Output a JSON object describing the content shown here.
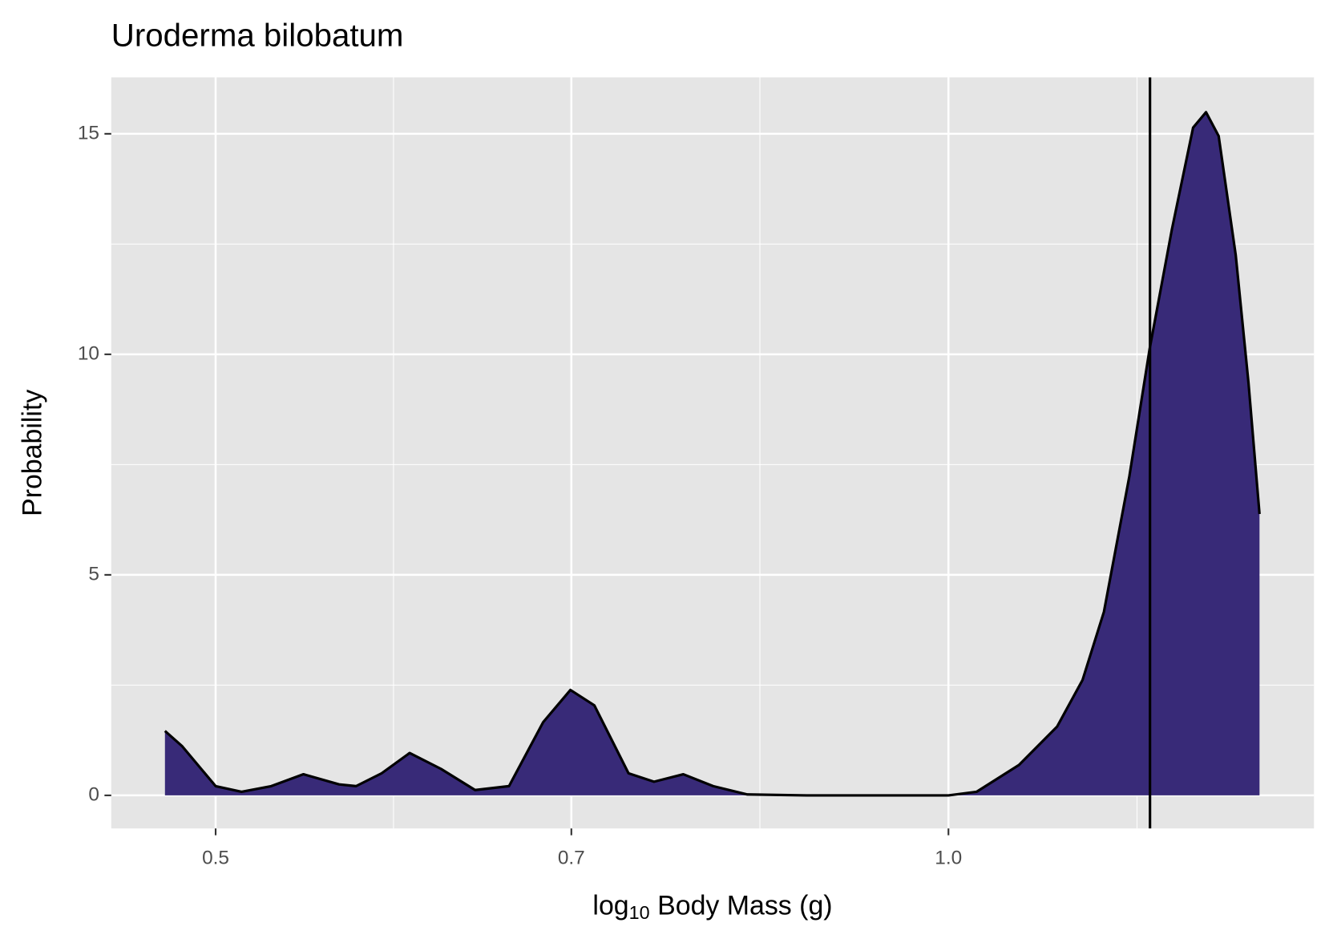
{
  "chart_data": {
    "type": "density",
    "title": "Uroderma bilobatum",
    "xlabel": {
      "base": "log",
      "subscript": "10",
      "rest": "Body Mass (g)"
    },
    "ylabel": "Probability",
    "x_log": true,
    "x": [
      0.4766,
      0.4843,
      0.5,
      0.5124,
      0.527,
      0.5433,
      0.5619,
      0.571,
      0.585,
      0.6007,
      0.6188,
      0.6391,
      0.6599,
      0.6816,
      0.6994,
      0.7154,
      0.7389,
      0.7569,
      0.7782,
      0.8005,
      0.8268,
      0.8743,
      1.0,
      1.0269,
      1.069,
      1.1082,
      1.1353,
      1.1584,
      1.1867,
      1.2097,
      1.2353,
      1.2604,
      1.2758,
      1.2912,
      1.3122,
      1.3281,
      1.3421
    ],
    "values": [
      1.46,
      1.12,
      0.21,
      0.08,
      0.21,
      0.48,
      0.25,
      0.21,
      0.5,
      0.96,
      0.6,
      0.12,
      0.21,
      1.66,
      2.39,
      2.04,
      0.5,
      0.31,
      0.48,
      0.21,
      0.02,
      0,
      0,
      0.08,
      0.69,
      1.56,
      2.62,
      4.16,
      7.24,
      10.13,
      12.83,
      15.14,
      15.49,
      14.95,
      12.25,
      9.36,
      6.38
    ],
    "color": "#382a78",
    "vline": 1.21,
    "xlim": [
      0.453,
      1.413
    ],
    "ylim": [
      -0.75,
      16.28
    ],
    "xticks": [
      0.5,
      0.7,
      {
        "value": 1,
        "label": "1.0"
      }
    ],
    "yticks": [
      0,
      5,
      10,
      15
    ],
    "grid": true
  }
}
